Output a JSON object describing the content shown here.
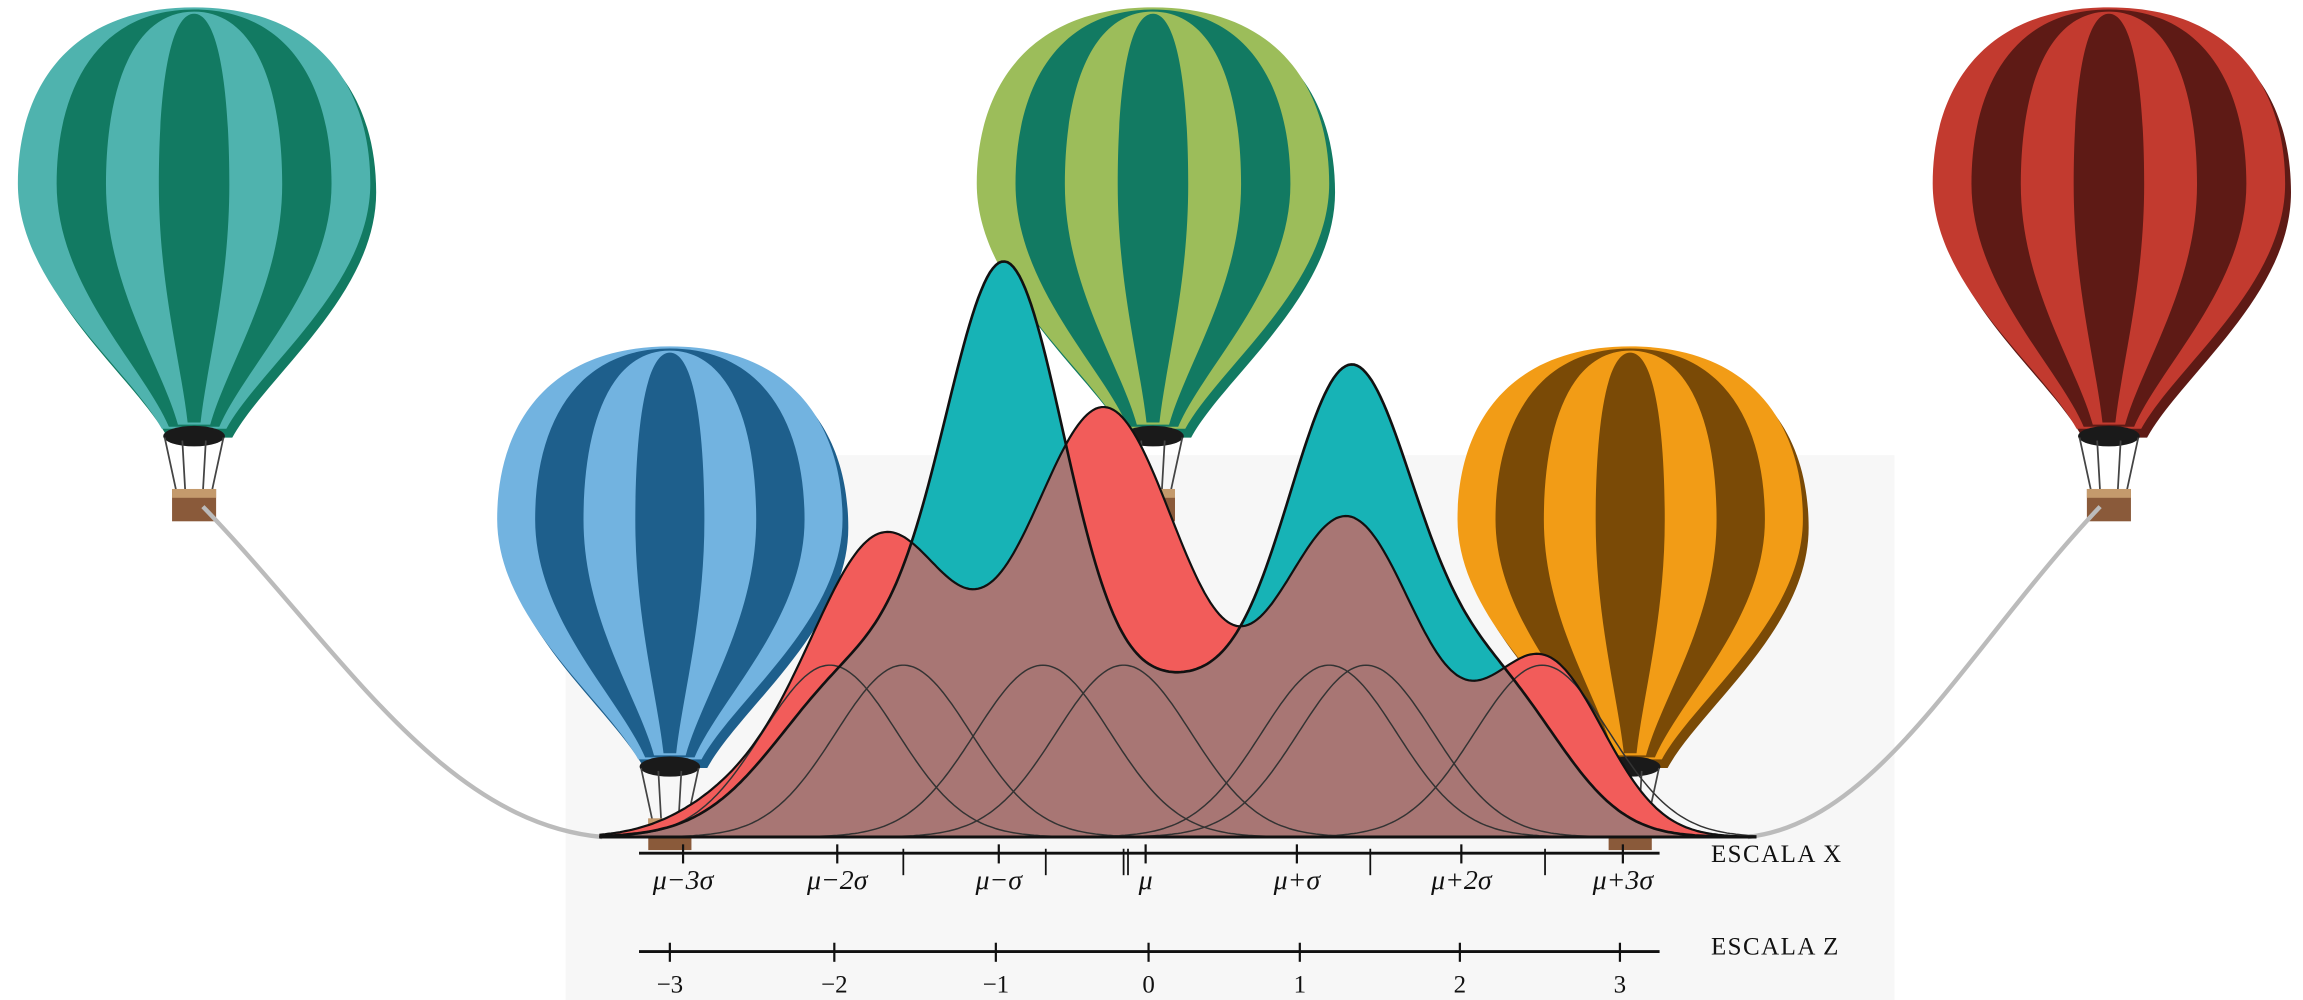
{
  "x_scale": {
    "label": "ESCALA X",
    "ticks": [
      "μ−3σ",
      "μ−2σ",
      "μ−σ",
      "μ",
      "μ+σ",
      "μ+2σ",
      "μ+3σ"
    ]
  },
  "z_scale": {
    "label": "ESCALA Z",
    "ticks": [
      "−3",
      "−2",
      "−1",
      "0",
      "1",
      "2",
      "3"
    ]
  }
}
